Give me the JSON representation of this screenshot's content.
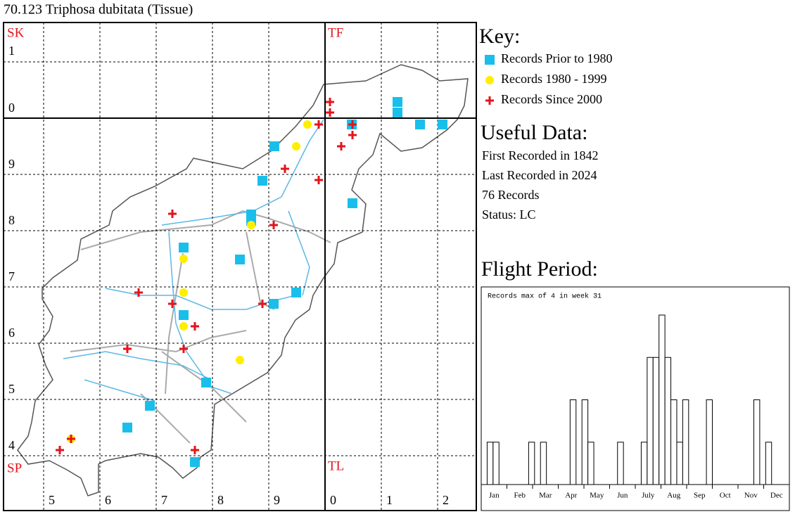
{
  "title": "70.123 Triphosa dubitata (Tissue)",
  "map": {
    "corner_labels": {
      "top_left": "SK",
      "top_right": "TF",
      "bottom_left": "SP",
      "bottom_right": "TL"
    },
    "row_labels": [
      "1",
      "0",
      "9",
      "8",
      "7",
      "6",
      "5",
      "4"
    ],
    "column_labels": [
      "5",
      "6",
      "7",
      "8",
      "9",
      "0",
      "1",
      "2"
    ]
  },
  "key": {
    "heading": "Key:",
    "items": [
      {
        "label": "Records Prior to 1980",
        "color": "#19bfea"
      },
      {
        "label": "Records 1980 - 1999",
        "color": "#ffee00"
      },
      {
        "label": "Records Since 2000",
        "color": "#e3141c"
      }
    ]
  },
  "useful_data": {
    "heading": "Useful Data:",
    "lines": [
      "First Recorded in 1842",
      "Last Recorded in 2024",
      "76 Records",
      "Status: LC"
    ]
  },
  "flight_period": {
    "heading": "Flight Period:"
  },
  "chart_data": {
    "type": "bar",
    "annotation": "Records max of 4 in week 31",
    "values": [
      0,
      1,
      1,
      0,
      0,
      0,
      0,
      0,
      1,
      0,
      1,
      0,
      0,
      0,
      0,
      2,
      0,
      2,
      1,
      0,
      0,
      0,
      0,
      1,
      0,
      0,
      0,
      1,
      3,
      3,
      4,
      3,
      2,
      1,
      2,
      0,
      0,
      0,
      2,
      0,
      0,
      0,
      0,
      0,
      0,
      0,
      2,
      0,
      1,
      0,
      0,
      0
    ],
    "xticks": [
      "Jan",
      "Feb",
      "Mar",
      "Apr",
      "May",
      "Jun",
      "July",
      "Aug",
      "Sep",
      "Oct",
      "Nov",
      "Dec"
    ],
    "ylim": [
      0,
      4
    ],
    "color": "#ffffff"
  }
}
